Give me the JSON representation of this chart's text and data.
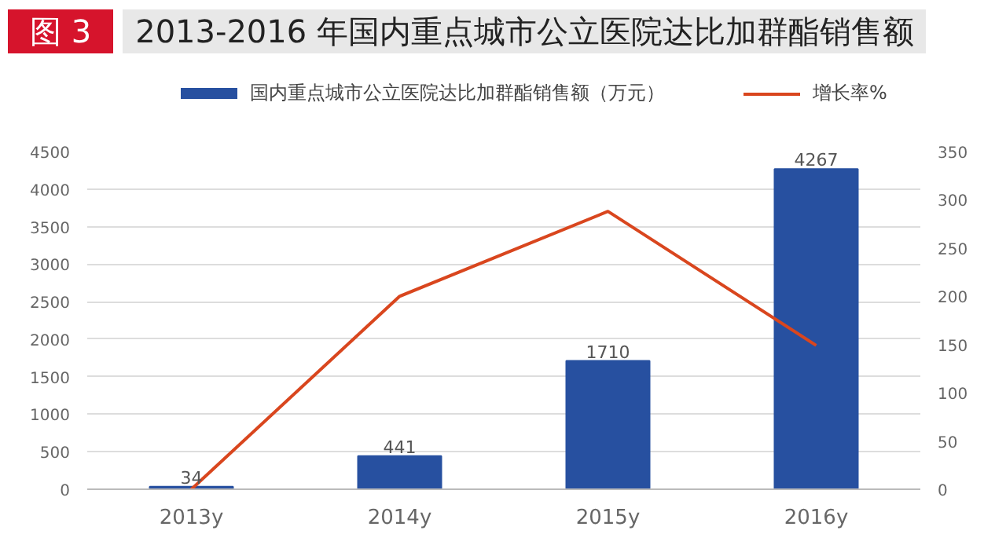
{
  "chart_data": {
    "type": "bar",
    "title": "2013-2016 年国内重点城市公立医院达比加群酯销售额",
    "annotations": [
      "图 3"
    ],
    "categories": [
      "2013y",
      "2014y",
      "2015y",
      "2016y"
    ],
    "series": [
      {
        "name": "国内重点城市公立医院达比加群酯销售额（万元）",
        "color": "#2750a0",
        "values": [
          34,
          441,
          1710,
          4267
        ],
        "value_labels": [
          "34",
          "441",
          "1710",
          "4267"
        ]
      },
      {
        "name": "增长率%",
        "type": "line",
        "axis": "y2",
        "color": "#d9461e",
        "values": [
          0,
          200,
          288,
          149
        ]
      }
    ],
    "ylim": [
      0,
      4500
    ],
    "yticks": [
      0,
      500,
      1000,
      1500,
      2000,
      2500,
      3000,
      3500,
      4000,
      4500
    ],
    "y2lim": [
      0,
      350
    ],
    "y2ticks": [
      0,
      50,
      100,
      150,
      200,
      250,
      300,
      350
    ],
    "grid": "y",
    "legend": "top",
    "line_style": "solid",
    "marker": "none"
  }
}
